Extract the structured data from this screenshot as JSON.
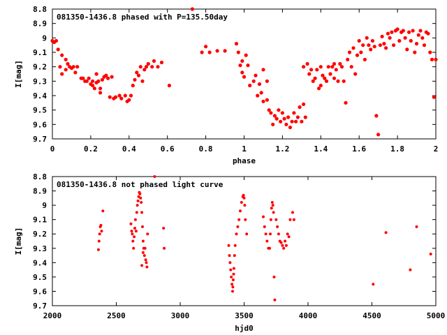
{
  "chart_data": [
    {
      "type": "scatter",
      "title": "081350-1436.8 phased with P=135.50day",
      "xlabel": "phase",
      "ylabel": "I[mag]",
      "xlim": [
        0,
        2
      ],
      "ylim": [
        8.8,
        9.7
      ],
      "y_inverted": true,
      "marker_color": "#ff0000",
      "grid": false,
      "xticks": [
        "0",
        "0.2",
        "0.4",
        "0.6",
        "0.8",
        "1",
        "1.2",
        "1.4",
        "1.6",
        "1.8",
        "2"
      ],
      "yticks": [
        "8.8",
        "8.9",
        "9",
        "9.1",
        "9.2",
        "9.3",
        "9.4",
        "9.5",
        "9.6",
        "9.7"
      ],
      "points": [
        [
          0.0,
          9.02
        ],
        [
          0.01,
          9.03
        ],
        [
          0.02,
          9.02
        ],
        [
          0.03,
          9.08
        ],
        [
          0.04,
          9.2
        ],
        [
          0.05,
          9.25
        ],
        [
          0.05,
          9.12
        ],
        [
          0.07,
          9.15
        ],
        [
          0.07,
          9.22
        ],
        [
          0.08,
          9.18
        ],
        [
          0.09,
          9.2
        ],
        [
          0.1,
          9.21
        ],
        [
          0.11,
          9.2
        ],
        [
          0.12,
          9.24
        ],
        [
          0.13,
          9.2
        ],
        [
          0.15,
          9.28
        ],
        [
          0.16,
          9.28
        ],
        [
          0.17,
          9.3
        ],
        [
          0.18,
          9.3
        ],
        [
          0.19,
          9.28
        ],
        [
          0.2,
          9.32
        ],
        [
          0.21,
          9.33
        ],
        [
          0.21,
          9.3
        ],
        [
          0.22,
          9.35
        ],
        [
          0.23,
          9.31
        ],
        [
          0.23,
          9.25
        ],
        [
          0.24,
          9.3
        ],
        [
          0.25,
          9.38
        ],
        [
          0.25,
          9.35
        ],
        [
          0.26,
          9.29
        ],
        [
          0.27,
          9.27
        ],
        [
          0.28,
          9.26
        ],
        [
          0.29,
          9.28
        ],
        [
          0.3,
          9.41
        ],
        [
          0.31,
          9.27
        ],
        [
          0.32,
          9.42
        ],
        [
          0.33,
          9.41
        ],
        [
          0.35,
          9.4
        ],
        [
          0.36,
          9.42
        ],
        [
          0.38,
          9.4
        ],
        [
          0.39,
          9.44
        ],
        [
          0.4,
          9.43
        ],
        [
          0.41,
          9.4
        ],
        [
          0.42,
          9.33
        ],
        [
          0.43,
          9.29
        ],
        [
          0.44,
          9.24
        ],
        [
          0.45,
          9.26
        ],
        [
          0.46,
          9.2
        ],
        [
          0.47,
          9.3
        ],
        [
          0.48,
          9.22
        ],
        [
          0.49,
          9.2
        ],
        [
          0.5,
          9.18
        ],
        [
          0.52,
          9.2
        ],
        [
          0.53,
          9.16
        ],
        [
          0.55,
          9.2
        ],
        [
          0.57,
          9.17
        ],
        [
          0.61,
          9.33
        ],
        [
          0.73,
          8.8
        ],
        [
          0.78,
          9.1
        ],
        [
          0.8,
          9.06
        ],
        [
          0.82,
          9.1
        ],
        [
          0.86,
          9.09
        ],
        [
          0.9,
          9.09
        ],
        [
          0.96,
          9.04
        ],
        [
          0.97,
          9.1
        ],
        [
          0.98,
          9.19
        ],
        [
          0.99,
          9.24
        ],
        [
          0.99,
          9.16
        ],
        [
          1.0,
          9.27
        ],
        [
          1.01,
          9.12
        ],
        [
          1.02,
          9.19
        ],
        [
          1.03,
          9.33
        ],
        [
          1.05,
          9.3
        ],
        [
          1.06,
          9.26
        ],
        [
          1.07,
          9.4
        ],
        [
          1.08,
          9.32
        ],
        [
          1.09,
          9.38
        ],
        [
          1.1,
          9.44
        ],
        [
          1.1,
          9.22
        ],
        [
          1.12,
          9.43
        ],
        [
          1.12,
          9.3
        ],
        [
          1.13,
          9.5
        ],
        [
          1.14,
          9.52
        ],
        [
          1.15,
          9.6
        ],
        [
          1.16,
          9.54
        ],
        [
          1.17,
          9.56
        ],
        [
          1.18,
          9.5
        ],
        [
          1.19,
          9.58
        ],
        [
          1.2,
          9.52
        ],
        [
          1.21,
          9.56
        ],
        [
          1.22,
          9.6
        ],
        [
          1.23,
          9.55
        ],
        [
          1.24,
          9.62
        ],
        [
          1.25,
          9.58
        ],
        [
          1.26,
          9.52
        ],
        [
          1.27,
          9.58
        ],
        [
          1.28,
          9.55
        ],
        [
          1.29,
          9.48
        ],
        [
          1.3,
          9.58
        ],
        [
          1.31,
          9.46
        ],
        [
          1.31,
          9.2
        ],
        [
          1.32,
          9.55
        ],
        [
          1.33,
          9.18
        ],
        [
          1.34,
          9.25
        ],
        [
          1.35,
          9.22
        ],
        [
          1.36,
          9.3
        ],
        [
          1.37,
          9.28
        ],
        [
          1.38,
          9.22
        ],
        [
          1.39,
          9.35
        ],
        [
          1.4,
          9.2
        ],
        [
          1.4,
          9.33
        ],
        [
          1.41,
          9.26
        ],
        [
          1.42,
          9.28
        ],
        [
          1.43,
          9.3
        ],
        [
          1.44,
          9.2
        ],
        [
          1.45,
          9.25
        ],
        [
          1.46,
          9.2
        ],
        [
          1.47,
          9.18
        ],
        [
          1.47,
          9.28
        ],
        [
          1.48,
          9.22
        ],
        [
          1.49,
          9.3
        ],
        [
          1.5,
          9.18
        ],
        [
          1.51,
          9.2
        ],
        [
          1.52,
          9.3
        ],
        [
          1.53,
          9.45
        ],
        [
          1.54,
          9.15
        ],
        [
          1.55,
          9.1
        ],
        [
          1.56,
          9.2
        ],
        [
          1.57,
          9.07
        ],
        [
          1.58,
          9.25
        ],
        [
          1.59,
          9.12
        ],
        [
          1.6,
          9.02
        ],
        [
          1.61,
          9.1
        ],
        [
          1.62,
          9.05
        ],
        [
          1.63,
          9.15
        ],
        [
          1.64,
          9.0
        ],
        [
          1.65,
          9.05
        ],
        [
          1.66,
          9.08
        ],
        [
          1.67,
          9.02
        ],
        [
          1.68,
          9.06
        ],
        [
          1.69,
          9.54
        ],
        [
          1.7,
          9.67
        ],
        [
          1.71,
          9.05
        ],
        [
          1.72,
          8.99
        ],
        [
          1.73,
          9.04
        ],
        [
          1.74,
          9.07
        ],
        [
          1.75,
          8.97
        ],
        [
          1.76,
          9.0
        ],
        [
          1.77,
          8.96
        ],
        [
          1.78,
          9.05
        ],
        [
          1.79,
          8.95
        ],
        [
          1.8,
          8.94
        ],
        [
          1.81,
          9.02
        ],
        [
          1.82,
          8.96
        ],
        [
          1.83,
          8.95
        ],
        [
          1.84,
          9.0
        ],
        [
          1.85,
          9.08
        ],
        [
          1.86,
          8.96
        ],
        [
          1.87,
          9.02
        ],
        [
          1.88,
          8.95
        ],
        [
          1.89,
          9.1
        ],
        [
          1.9,
          9.04
        ],
        [
          1.91,
          8.98
        ],
        [
          1.92,
          8.95
        ],
        [
          1.93,
          9.0
        ],
        [
          1.94,
          9.05
        ],
        [
          1.95,
          8.96
        ],
        [
          1.96,
          8.97
        ],
        [
          1.97,
          9.1
        ],
        [
          1.98,
          9.15
        ],
        [
          1.99,
          9.41
        ],
        [
          2.0,
          9.15
        ]
      ]
    },
    {
      "type": "scatter",
      "title": "081350-1436.8 not phased light curve",
      "xlabel": "hjd0",
      "ylabel": "I[mag]",
      "xlim": [
        2000,
        5000
      ],
      "ylim": [
        8.8,
        9.7
      ],
      "y_inverted": true,
      "marker_color": "#ff0000",
      "grid": false,
      "xticks": [
        "2000",
        "2500",
        "3000",
        "3500",
        "4000",
        "4500",
        "5000"
      ],
      "yticks": [
        "8.8",
        "8.9",
        "9",
        "9.1",
        "9.2",
        "9.3",
        "9.4",
        "9.5",
        "9.6",
        "9.7"
      ],
      "points": [
        [
          2360,
          9.31
        ],
        [
          2365,
          9.25
        ],
        [
          2370,
          9.2
        ],
        [
          2375,
          9.15
        ],
        [
          2380,
          9.14
        ],
        [
          2385,
          9.18
        ],
        [
          2395,
          9.04
        ],
        [
          2615,
          9.13
        ],
        [
          2620,
          9.18
        ],
        [
          2625,
          9.2
        ],
        [
          2630,
          9.25
        ],
        [
          2635,
          9.3
        ],
        [
          2640,
          9.22
        ],
        [
          2645,
          9.16
        ],
        [
          2650,
          9.1
        ],
        [
          2655,
          9.18
        ],
        [
          2660,
          9.05
        ],
        [
          2665,
          9.0
        ],
        [
          2670,
          8.97
        ],
        [
          2675,
          8.94
        ],
        [
          2680,
          8.91
        ],
        [
          2685,
          8.92
        ],
        [
          2690,
          8.95
        ],
        [
          2695,
          8.98
        ],
        [
          2700,
          9.05
        ],
        [
          2705,
          9.15
        ],
        [
          2710,
          9.25
        ],
        [
          2715,
          9.3
        ],
        [
          2720,
          9.35
        ],
        [
          2725,
          9.3
        ],
        [
          2730,
          9.38
        ],
        [
          2735,
          9.4
        ],
        [
          2740,
          9.43
        ],
        [
          2700,
          9.42
        ],
        [
          2710,
          9.33
        ],
        [
          2745,
          9.2
        ],
        [
          2800,
          8.8
        ],
        [
          2870,
          9.16
        ],
        [
          2875,
          9.3
        ],
        [
          3380,
          9.28
        ],
        [
          3385,
          9.35
        ],
        [
          3390,
          9.4
        ],
        [
          3395,
          9.45
        ],
        [
          3400,
          9.5
        ],
        [
          3405,
          9.55
        ],
        [
          3410,
          9.6
        ],
        [
          3412,
          9.57
        ],
        [
          3415,
          9.52
        ],
        [
          3418,
          9.48
        ],
        [
          3420,
          9.44
        ],
        [
          3425,
          9.35
        ],
        [
          3430,
          9.28
        ],
        [
          3440,
          9.2
        ],
        [
          3450,
          9.15
        ],
        [
          3460,
          9.1
        ],
        [
          3470,
          9.04
        ],
        [
          3480,
          8.98
        ],
        [
          3490,
          8.94
        ],
        [
          3495,
          8.93
        ],
        [
          3500,
          8.95
        ],
        [
          3505,
          9.0
        ],
        [
          3510,
          9.1
        ],
        [
          3520,
          9.2
        ],
        [
          3650,
          9.08
        ],
        [
          3660,
          9.15
        ],
        [
          3670,
          9.2
        ],
        [
          3680,
          9.25
        ],
        [
          3690,
          9.3
        ],
        [
          3700,
          9.3
        ],
        [
          3705,
          9.2
        ],
        [
          3710,
          9.1
        ],
        [
          3715,
          9.02
        ],
        [
          3720,
          8.98
        ],
        [
          3725,
          9.0
        ],
        [
          3730,
          9.05
        ],
        [
          3735,
          9.5
        ],
        [
          3740,
          9.66
        ],
        [
          3750,
          9.1
        ],
        [
          3760,
          9.15
        ],
        [
          3770,
          9.2
        ],
        [
          3780,
          9.25
        ],
        [
          3790,
          9.26
        ],
        [
          3800,
          9.28
        ],
        [
          3810,
          9.3
        ],
        [
          3820,
          9.25
        ],
        [
          3830,
          9.28
        ],
        [
          3840,
          9.2
        ],
        [
          3850,
          9.22
        ],
        [
          3860,
          9.1
        ],
        [
          3880,
          9.05
        ],
        [
          3890,
          9.1
        ],
        [
          4510,
          9.55
        ],
        [
          4610,
          9.19
        ],
        [
          4800,
          9.45
        ],
        [
          4850,
          9.15
        ],
        [
          4960,
          9.34
        ]
      ]
    }
  ]
}
